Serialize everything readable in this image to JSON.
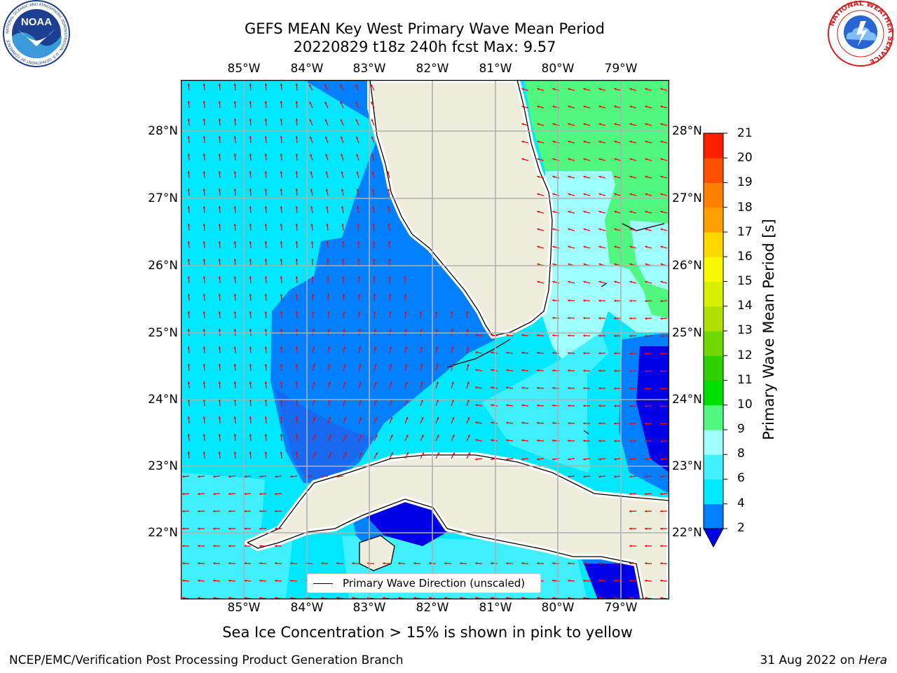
{
  "title": {
    "line1": "GEFS MEAN Key West Primary Wave Mean Period",
    "line2": "20220829 t18z 240h fcst    Max: 9.57"
  },
  "map": {
    "lon_labels": [
      "85°W",
      "84°W",
      "83°W",
      "82°W",
      "81°W",
      "80°W",
      "79°W"
    ],
    "lat_labels": [
      "28°N",
      "27°N",
      "26°N",
      "25°N",
      "24°N",
      "23°N",
      "22°N"
    ],
    "legend_label": "Primary Wave Direction (unscaled)",
    "colors": {
      "land": "#efeddc",
      "vector": "#ff0000",
      "grid": "#b0b0b0",
      "coast": "#000000"
    }
  },
  "colorbar": {
    "title": "Primary Wave Mean Period [s]",
    "ticks": [
      "2",
      "4",
      "6",
      "8",
      "9",
      "10",
      "11",
      "12",
      "13",
      "14",
      "15",
      "16",
      "17",
      "18",
      "19",
      "20",
      "21"
    ],
    "colors": [
      "#0000e6",
      "#0080ff",
      "#00e8ff",
      "#40f0ff",
      "#a0ffff",
      "#50f880",
      "#00e000",
      "#30d000",
      "#70d800",
      "#b0e000",
      "#d8f000",
      "#f8f800",
      "#ffd800",
      "#ffa000",
      "#ff8000",
      "#ff5000",
      "#ff2000",
      "#ff0000"
    ]
  },
  "logos": {
    "left_text": "NOAA",
    "left_ring": "NATIONAL OCEANIC AND ATMOSPHERIC ADMINISTRATION · U.S. DEPARTMENT OF COMMERCE",
    "right_ring": "NATIONAL WEATHER SERVICE"
  },
  "note": "Sea Ice Concentration > 15% is shown in pink to yellow",
  "footer": {
    "left": "NCEP/EMC/Verification Post Processing Product Generation Branch",
    "date": "31 Aug 2022 on",
    "host": "Hera"
  }
}
